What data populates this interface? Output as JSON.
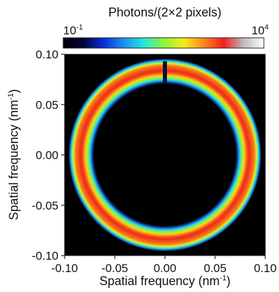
{
  "chart_data": {
    "type": "heatmap",
    "description_shape": "ring",
    "colorbar": {
      "title": "Photons/(2×2 pixels)",
      "min_base": "10",
      "min_exp": "-1",
      "max_base": "10",
      "max_exp": "4",
      "scale": "log",
      "colors": [
        "#000000",
        "#04043a",
        "#0a2bd6",
        "#1a8ff2",
        "#25e6dd",
        "#8ef43a",
        "#f2ee18",
        "#fb8a1a",
        "#f21e1e",
        "#bdbdbd",
        "#ffffff"
      ]
    },
    "xlabel": "Spatial frequency (nm",
    "xlabel_sup": "-1",
    "xlabel_end": ")",
    "ylabel": "Spatial frequency (nm",
    "ylabel_sup": "-1",
    "ylabel_end": ")",
    "xlim": [
      -0.1,
      0.1
    ],
    "ylim": [
      -0.1,
      0.1
    ],
    "xticks": [
      -0.1,
      -0.05,
      0.0,
      0.05,
      0.1
    ],
    "xtick_labels": [
      "-0.10",
      "-0.05",
      "0.00",
      "0.05",
      "0.10"
    ],
    "yticks": [
      0.1,
      0.05,
      0.0,
      -0.05,
      -0.1
    ],
    "ytick_labels": [
      "0.10",
      "0.05",
      "0.00",
      "-0.05",
      "-0.10"
    ],
    "ring": {
      "center": [
        0.0,
        0.0
      ],
      "inner_radius": 0.075,
      "outer_radius": 0.092,
      "peak_radius": 0.084,
      "peak_level": "red",
      "gap_at_top": true
    }
  }
}
